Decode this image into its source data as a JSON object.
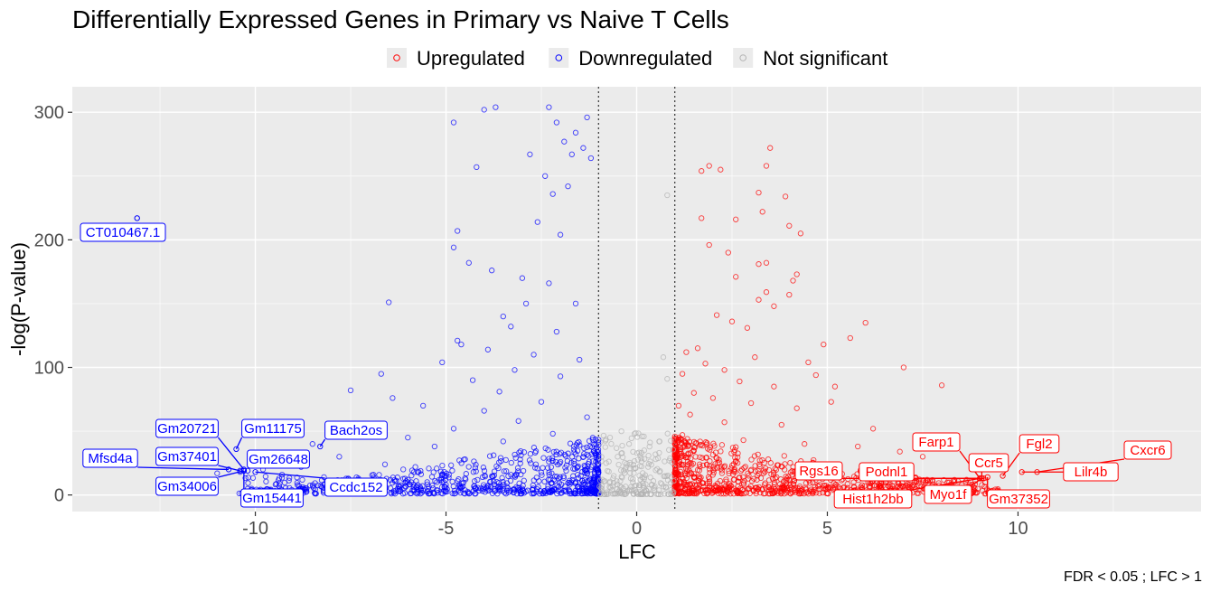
{
  "chart_data": {
    "type": "scatter",
    "title": "Differentially Expressed Genes in Primary vs Naive T Cells",
    "xlabel": "LFC",
    "ylabel": "-log(P-value)",
    "caption": "FDR <  0.05 ; LFC >  1",
    "xlim": [
      -14.8,
      14.8
    ],
    "ylim": [
      -13,
      320
    ],
    "xticks": [
      -10,
      -5,
      0,
      5,
      10
    ],
    "yticks": [
      0,
      100,
      200,
      300
    ],
    "xtick_labels": [
      "-10",
      "-5",
      "0",
      "5",
      "10"
    ],
    "ytick_labels": [
      "0",
      "100",
      "200",
      "300"
    ],
    "grid": true,
    "legend_position": "top",
    "thresholds": {
      "lfc": [
        -1,
        1
      ],
      "fdr": 0.05
    },
    "colors": {
      "up": "#ff0000",
      "down": "#0000ff",
      "ns": "#b3b3b3",
      "panel": "#ebebeb",
      "grid": "#ffffff"
    },
    "series": [
      {
        "name": "Upregulated",
        "key": "up",
        "points": [
          [
            1.9,
            258
          ],
          [
            2.2,
            255
          ],
          [
            1.7,
            254
          ],
          [
            3.5,
            272
          ],
          [
            3.4,
            258
          ],
          [
            3.2,
            237
          ],
          [
            3.3,
            222
          ],
          [
            3.9,
            234
          ],
          [
            2.6,
            216
          ],
          [
            4.0,
            211
          ],
          [
            1.7,
            217
          ],
          [
            4.3,
            205
          ],
          [
            1.9,
            196
          ],
          [
            2.4,
            190
          ],
          [
            3.4,
            182
          ],
          [
            3.2,
            181
          ],
          [
            2.6,
            171
          ],
          [
            4.2,
            173
          ],
          [
            4.1,
            168
          ],
          [
            3.4,
            159
          ],
          [
            3.2,
            153
          ],
          [
            4.0,
            157
          ],
          [
            3.6,
            148
          ],
          [
            6.0,
            135
          ],
          [
            5.6,
            123
          ],
          [
            7.0,
            100
          ],
          [
            8.0,
            86
          ],
          [
            5.2,
            85
          ],
          [
            4.9,
            118
          ],
          [
            2.1,
            141
          ],
          [
            2.5,
            136
          ],
          [
            1.6,
            115
          ],
          [
            2.9,
            131
          ],
          [
            1.3,
            112
          ],
          [
            2.3,
            98
          ],
          [
            1.8,
            103
          ],
          [
            3.1,
            108
          ],
          [
            4.5,
            104
          ],
          [
            1.2,
            95
          ],
          [
            2.7,
            89
          ],
          [
            3.6,
            85
          ],
          [
            4.7,
            94
          ],
          [
            1.5,
            80
          ],
          [
            2.0,
            76
          ],
          [
            3.0,
            72
          ],
          [
            1.1,
            70
          ],
          [
            4.2,
            68
          ],
          [
            5.1,
            73
          ],
          [
            1.4,
            63
          ],
          [
            2.3,
            57
          ],
          [
            3.8,
            55
          ],
          [
            6.2,
            52
          ],
          [
            1.2,
            47
          ],
          [
            2.8,
            43
          ],
          [
            4.4,
            40
          ],
          [
            5.8,
            38
          ],
          [
            6.9,
            34
          ],
          [
            7.5,
            30
          ],
          [
            1.1,
            25
          ]
        ],
        "labeled": [
          {
            "gene": "Cxcr6",
            "x": 10.5,
            "y": 18
          },
          {
            "gene": "Fgl2",
            "x": 9.6,
            "y": 15
          },
          {
            "gene": "Lilr4b",
            "x": 10.1,
            "y": 18
          },
          {
            "gene": "Farp1",
            "x": 9.0,
            "y": 13
          },
          {
            "gene": "Ccr5",
            "x": 9.05,
            "y": 13
          },
          {
            "gene": "Rgs16",
            "x": 9.0,
            "y": 13
          },
          {
            "gene": "Podnl1",
            "x": 9.1,
            "y": 13
          },
          {
            "gene": "Hist1h2bb",
            "x": 9.0,
            "y": 13
          },
          {
            "gene": "Myo1f",
            "x": 9.05,
            "y": 13
          },
          {
            "gene": "Gm37352",
            "x": 9.2,
            "y": 14
          }
        ]
      },
      {
        "name": "Downregulated",
        "key": "down",
        "points": [
          [
            -13.1,
            217
          ],
          [
            -2.3,
            304
          ],
          [
            -3.7,
            304
          ],
          [
            -4.0,
            302
          ],
          [
            -4.8,
            292
          ],
          [
            -1.3,
            296
          ],
          [
            -2.1,
            292
          ],
          [
            -1.6,
            284
          ],
          [
            -1.9,
            277
          ],
          [
            -1.4,
            272
          ],
          [
            -1.2,
            264
          ],
          [
            -1.7,
            267
          ],
          [
            -2.8,
            267
          ],
          [
            -4.2,
            257
          ],
          [
            -2.4,
            250
          ],
          [
            -1.8,
            242
          ],
          [
            -2.2,
            236
          ],
          [
            -2.6,
            214
          ],
          [
            -4.7,
            207
          ],
          [
            -2.0,
            204
          ],
          [
            -4.8,
            194
          ],
          [
            -4.4,
            182
          ],
          [
            -3.8,
            176
          ],
          [
            -6.5,
            151
          ],
          [
            -3.0,
            170
          ],
          [
            -2.3,
            166
          ],
          [
            -2.9,
            150
          ],
          [
            -1.6,
            150
          ],
          [
            -3.5,
            140
          ],
          [
            -3.3,
            132
          ],
          [
            -2.1,
            128
          ],
          [
            -4.7,
            121
          ],
          [
            -4.6,
            118
          ],
          [
            -3.9,
            114
          ],
          [
            -2.7,
            110
          ],
          [
            -5.1,
            104
          ],
          [
            -1.5,
            106
          ],
          [
            -3.2,
            98
          ],
          [
            -6.7,
            95
          ],
          [
            -2.0,
            93
          ],
          [
            -4.3,
            90
          ],
          [
            -7.5,
            82
          ],
          [
            -3.6,
            81
          ],
          [
            -6.4,
            76
          ],
          [
            -2.5,
            73
          ],
          [
            -5.6,
            70
          ],
          [
            -4.0,
            66
          ],
          [
            -1.3,
            61
          ],
          [
            -3.1,
            58
          ],
          [
            -7.0,
            55
          ],
          [
            -4.8,
            52
          ],
          [
            -2.2,
            48
          ],
          [
            -6.0,
            45
          ],
          [
            -8.5,
            40
          ],
          [
            -3.5,
            42
          ],
          [
            -5.3,
            38
          ],
          [
            -9.4,
            33
          ],
          [
            -7.8,
            30
          ],
          [
            -4.5,
            28
          ],
          [
            -2.0,
            26
          ],
          [
            -6.6,
            24
          ],
          [
            -8.8,
            22
          ],
          [
            -9.8,
            20
          ],
          [
            -10.4,
            18
          ],
          [
            -11.0,
            17
          ],
          [
            -9.3,
            16
          ],
          [
            -8.2,
            14
          ],
          [
            -7.3,
            12
          ],
          [
            -6.0,
            10
          ],
          [
            -5.0,
            8
          ],
          [
            -4.0,
            6
          ],
          [
            -3.0,
            5
          ],
          [
            -2.0,
            4
          ],
          [
            -1.2,
            3
          ]
        ],
        "labeled": [
          {
            "gene": "CT010467.1",
            "x": -13.1,
            "y": 217
          },
          {
            "gene": "Gm20721",
            "x": -10.3,
            "y": 20
          },
          {
            "gene": "Gm11175",
            "x": -10.5,
            "y": 36
          },
          {
            "gene": "Bach2os",
            "x": -8.3,
            "y": 38
          },
          {
            "gene": "Mfsd4a",
            "x": -10.7,
            "y": 20
          },
          {
            "gene": "Gm37401",
            "x": -10.4,
            "y": 19
          },
          {
            "gene": "Gm26648",
            "x": -10.2,
            "y": 19
          },
          {
            "gene": "Gm34006",
            "x": -10.3,
            "y": 19
          },
          {
            "gene": "Gm15441",
            "x": -10.3,
            "y": 19
          },
          {
            "gene": "Ccdc152",
            "x": -10.0,
            "y": 18
          }
        ]
      },
      {
        "name": "Not significant",
        "key": "ns",
        "points": [
          [
            0.8,
            235
          ],
          [
            0.7,
            108
          ],
          [
            0.8,
            91
          ],
          [
            -0.2,
            40
          ],
          [
            0.2,
            35
          ],
          [
            -0.5,
            30
          ],
          [
            0.5,
            28
          ],
          [
            -0.8,
            25
          ],
          [
            0.3,
            22
          ],
          [
            -0.3,
            20
          ],
          [
            0.6,
            18
          ],
          [
            -0.6,
            15
          ],
          [
            0.1,
            12
          ],
          [
            -0.1,
            10
          ],
          [
            0.4,
            8
          ],
          [
            -0.4,
            6
          ],
          [
            0.9,
            14
          ],
          [
            -0.9,
            12
          ],
          [
            -0.7,
            45
          ],
          [
            -0.4,
            50
          ],
          [
            0.6,
            42
          ]
        ]
      }
    ]
  }
}
